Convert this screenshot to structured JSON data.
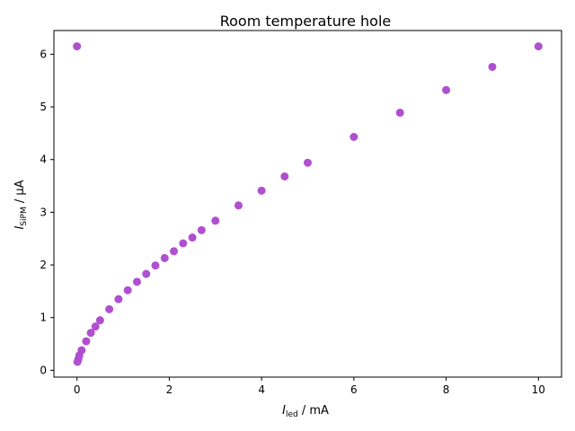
{
  "chart_data": {
    "type": "scatter",
    "title": "Room temperature hole",
    "xlabel": {
      "symbol": "I",
      "subscript": "led",
      "unit": " / mA"
    },
    "ylabel": {
      "symbol": "I",
      "subscript": "SiPM",
      "unit": " / μA"
    },
    "xlim": [
      -0.5,
      10.5
    ],
    "ylim": [
      -0.13,
      6.45
    ],
    "xticks": [
      0,
      2,
      4,
      6,
      8,
      10
    ],
    "xtick_labels": [
      "0",
      "2",
      "4",
      "6",
      "8",
      "10"
    ],
    "yticks": [
      0,
      1,
      2,
      3,
      4,
      5,
      6
    ],
    "ytick_labels": [
      "0",
      "1",
      "2",
      "3",
      "4",
      "5",
      "6"
    ],
    "grid": false,
    "marker_color": "#b04fd0",
    "series": [
      {
        "x": [
          0.0,
          0.01,
          0.03,
          0.05,
          0.1,
          0.2,
          0.3,
          0.4,
          0.5,
          0.7,
          0.9,
          1.1,
          1.3,
          1.5,
          1.7,
          1.9,
          2.1,
          2.3,
          2.5,
          2.7,
          3.0,
          3.5,
          4.0,
          4.5,
          5.0,
          6.0,
          7.0,
          8.0,
          9.0,
          10.0
        ],
        "y": [
          6.15,
          0.16,
          0.21,
          0.28,
          0.38,
          0.55,
          0.71,
          0.83,
          0.95,
          1.16,
          1.35,
          1.52,
          1.68,
          1.83,
          1.99,
          2.13,
          2.26,
          2.41,
          2.52,
          2.66,
          2.84,
          3.13,
          3.41,
          3.68,
          3.94,
          4.43,
          4.89,
          5.32,
          5.76,
          6.15
        ]
      }
    ]
  }
}
